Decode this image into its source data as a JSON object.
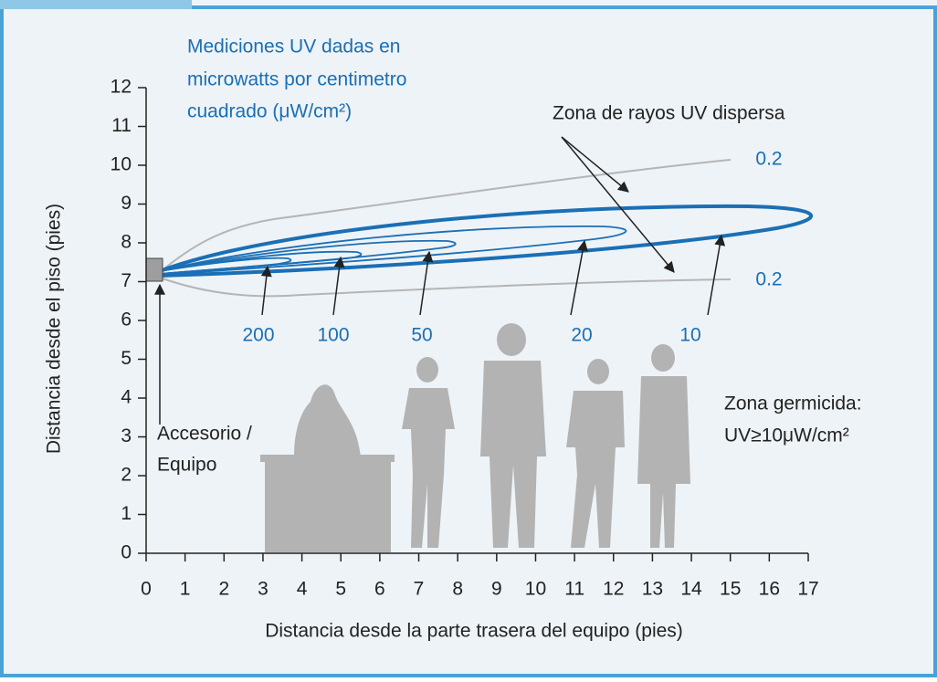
{
  "chart_data": {
    "type": "contour",
    "title_lines": [
      "Mediciones UV dadas en",
      "microwatts por centimetro",
      "cuadrado (μW/cm²)"
    ],
    "xlabel": "Distancia desde la parte trasera del equipo (pies)",
    "ylabel": "Distancia desde el piso (pies)",
    "xlim": [
      0,
      17
    ],
    "ylim": [
      0,
      12
    ],
    "xticks": [
      0,
      1,
      2,
      3,
      4,
      5,
      6,
      7,
      8,
      9,
      10,
      11,
      12,
      13,
      14,
      15,
      16,
      17
    ],
    "yticks": [
      0,
      1,
      2,
      3,
      4,
      5,
      6,
      7,
      8,
      9,
      10,
      11,
      12
    ],
    "contours": [
      {
        "level": 200
      },
      {
        "level": 100
      },
      {
        "level": 50
      },
      {
        "level": 20
      },
      {
        "level": 10
      },
      {
        "level": 0.2
      },
      {
        "level": 0.2
      }
    ],
    "annotations": {
      "scatter_zone": "Zona de rayos UV dispersa",
      "fixture": [
        "Accesorio /",
        "Equipo"
      ],
      "germicidal": [
        "Zona germicida:",
        "UV≥10μW/cm²"
      ]
    }
  }
}
